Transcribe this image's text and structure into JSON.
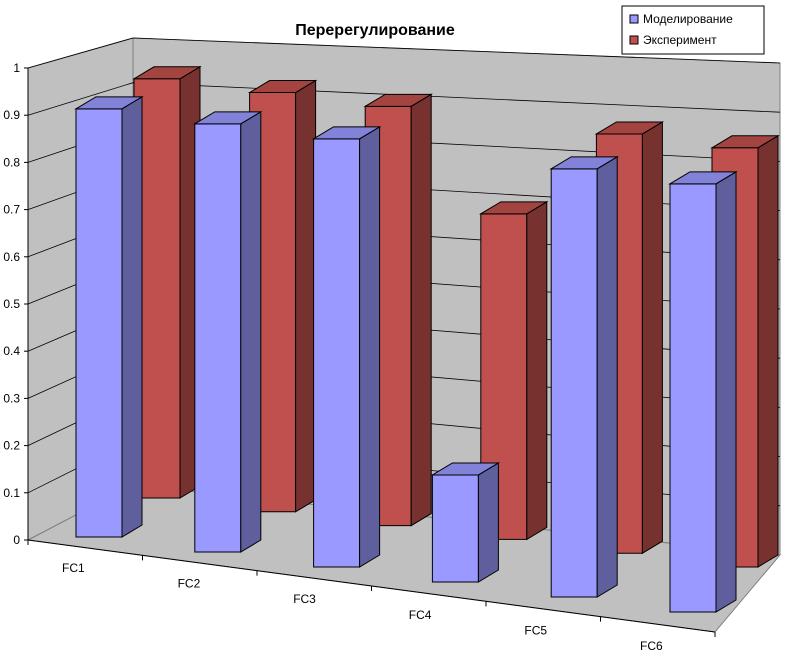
{
  "chart_data": {
    "type": "bar",
    "title": "Перерегулирование",
    "categories": [
      "FC1",
      "FC2",
      "FC3",
      "FC4",
      "FC5",
      "FC6"
    ],
    "series": [
      {
        "name": "Моделирование",
        "values": [
          0.96,
          0.96,
          0.96,
          0.24,
          0.96,
          0.96
        ],
        "color": "#9999ff"
      },
      {
        "name": "Эксперимент",
        "values": [
          0.94,
          0.94,
          0.94,
          0.73,
          0.94,
          0.94
        ],
        "color": "#c0504d"
      }
    ],
    "y_ticks": [
      "0",
      "0.1",
      "0.2",
      "0.3",
      "0.4",
      "0.5",
      "0.6",
      "0.7",
      "0.8",
      "0.9",
      "1"
    ],
    "ylim": [
      0,
      1
    ],
    "grid": true,
    "legend_position": "top-right"
  }
}
